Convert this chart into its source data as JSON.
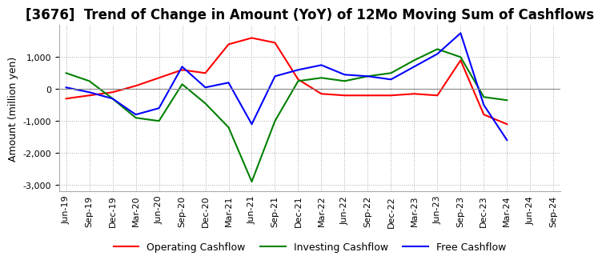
{
  "title": "[3676]  Trend of Change in Amount (YoY) of 12Mo Moving Sum of Cashflows",
  "ylabel": "Amount (million yen)",
  "x_labels": [
    "Jun-19",
    "Sep-19",
    "Dec-19",
    "Mar-20",
    "Jun-20",
    "Sep-20",
    "Dec-20",
    "Mar-21",
    "Jun-21",
    "Sep-21",
    "Dec-21",
    "Mar-22",
    "Jun-22",
    "Sep-22",
    "Dec-22",
    "Mar-23",
    "Jun-23",
    "Sep-23",
    "Dec-23",
    "Mar-24",
    "Jun-24",
    "Sep-24"
  ],
  "operating": [
    -300,
    -250,
    -100,
    100,
    350,
    600,
    450,
    1400,
    1500,
    1350,
    300,
    -200,
    -200,
    -200,
    -200,
    -150,
    -200,
    900,
    -800,
    -1100,
    null,
    null
  ],
  "investing": [
    500,
    300,
    -300,
    -900,
    -1000,
    150,
    -500,
    -1200,
    -2800,
    -1000,
    300,
    350,
    250,
    200,
    500,
    900,
    1250,
    900,
    -200,
    -350,
    null,
    null
  ],
  "free": [
    50,
    -100,
    -300,
    -800,
    -600,
    750,
    -50,
    200,
    -1050,
    350,
    600,
    750,
    500,
    400,
    300,
    750,
    1100,
    1750,
    -600,
    -1600,
    null,
    null
  ],
  "operating_color": "#ff0000",
  "investing_color": "#008000",
  "free_color": "#0000ff",
  "ylim": [
    -3200,
    2000
  ],
  "yticks": [
    -3000,
    -2000,
    -1000,
    0,
    1000
  ],
  "grid_color": "#aaaaaa",
  "background_color": "#ffffff",
  "title_fontsize": 12,
  "label_fontsize": 9,
  "tick_fontsize": 8
}
